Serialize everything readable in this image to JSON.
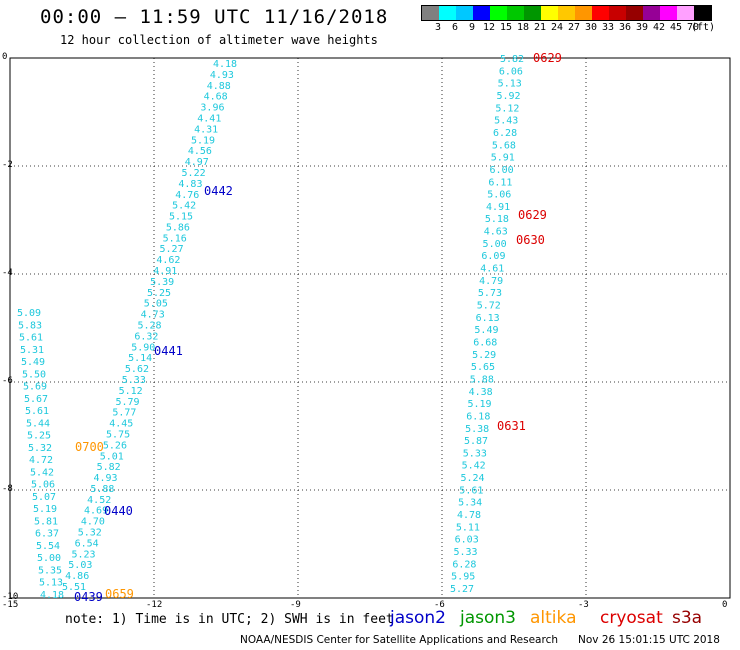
{
  "header": {
    "title": "00:00 – 11:59 UTC 11/16/2018",
    "subtitle": "12 hour collection of altimeter wave heights"
  },
  "colorbar": {
    "colors": [
      "#808080",
      "#00ffff",
      "#00c8ff",
      "#0000ff",
      "#00ff00",
      "#00c800",
      "#009600",
      "#ffff00",
      "#ffc800",
      "#ff9600",
      "#ff0000",
      "#c80000",
      "#960000",
      "#960096",
      "#ff00ff",
      "#ffa0ff",
      "#000000"
    ],
    "labels": [
      "3",
      "6",
      "9",
      "12",
      "15",
      "18",
      "21",
      "24",
      "27",
      "30",
      "33",
      "36",
      "39",
      "42",
      "45",
      "70",
      "(ft)"
    ]
  },
  "axes": {
    "x": {
      "ticks": [
        "-15",
        "-12",
        "-9",
        "-6",
        "-3",
        "0"
      ]
    },
    "y": {
      "ticks": [
        "0",
        "-2",
        "-4",
        "-6",
        "-8",
        "-10"
      ]
    }
  },
  "swh_values": {
    "track1": [
      "4.18",
      "4.93",
      "4.88",
      "4.68",
      "3.96",
      "4.41",
      "4.31",
      "5.19",
      "4.56",
      "4.97",
      "5.22",
      "4.83",
      "4.76",
      "5.42",
      "5.15",
      "5.86",
      "5.16",
      "5.27",
      "4.62",
      "4.91",
      "5.39",
      "5.25",
      "5.05",
      "4.73",
      "5.28",
      "6.32",
      "5.90",
      "5.14",
      "5.62",
      "5.33",
      "5.12",
      "5.79",
      "5.77",
      "4.45",
      "5.75",
      "5.26",
      "5.01",
      "5.82",
      "4.93",
      "5.88",
      "4.52",
      "4.69",
      "4.70",
      "5.32",
      "6.54",
      "5.23",
      "5.03",
      "4.86",
      "5.51"
    ],
    "track2": [
      "5.09",
      "5.83",
      "5.61",
      "5.31",
      "5.49",
      "5.50",
      "5.69",
      "5.67",
      "5.61",
      "5.44",
      "5.25",
      "5.32",
      "4.72",
      "5.42",
      "5.06",
      "5.07",
      "5.19",
      "5.81",
      "6.37",
      "5.54",
      "5.00",
      "5.35",
      "5.13",
      "4.18"
    ],
    "track3": [
      "5.82",
      "6.06",
      "5.13",
      "5.92",
      "5.12",
      "5.43",
      "6.28",
      "5.68",
      "5.91",
      "6.00",
      "6.11",
      "5.06",
      "4.91",
      "5.18",
      "4.63",
      "5.00",
      "6.09",
      "4.61",
      "4.79",
      "5.73",
      "5.72",
      "6.13",
      "5.49",
      "6.68",
      "5.29",
      "5.65",
      "5.88",
      "4.38",
      "5.19",
      "6.18",
      "5.38",
      "5.87",
      "5.33",
      "5.42",
      "5.24",
      "5.61",
      "5.34",
      "4.78",
      "5.11",
      "6.03",
      "5.33",
      "6.28",
      "5.95",
      "5.27"
    ]
  },
  "time_labels": [
    {
      "text": "0629",
      "satellite": "cryosat"
    },
    {
      "text": "0629",
      "satellite": "cryosat"
    },
    {
      "text": "0630",
      "satellite": "cryosat"
    },
    {
      "text": "0631",
      "satellite": "cryosat"
    },
    {
      "text": "0442",
      "satellite": "jason2"
    },
    {
      "text": "0441",
      "satellite": "jason2"
    },
    {
      "text": "0440",
      "satellite": "jason2"
    },
    {
      "text": "0439",
      "satellite": "jason2"
    },
    {
      "text": "0700",
      "satellite": "altika"
    },
    {
      "text": "0659",
      "satellite": "altika"
    }
  ],
  "footer": {
    "note": "note:  1) Time is in UTC;  2) SWH is in feet",
    "legend": [
      {
        "name": "jason2",
        "color": "#0000c8"
      },
      {
        "name": "jason3",
        "color": "#009600"
      },
      {
        "name": "altika",
        "color": "#ff9600"
      },
      {
        "name": "cryosat",
        "color": "#dc0000"
      },
      {
        "name": "s3a",
        "color": "#960000"
      }
    ],
    "credit": "NOAA/NESDIS Center for Satellite Applications and Research      Nov 26 15:01:15 UTC 2018"
  },
  "colors": {
    "swh_text": "#1ec8dc",
    "grid": "#000000"
  }
}
